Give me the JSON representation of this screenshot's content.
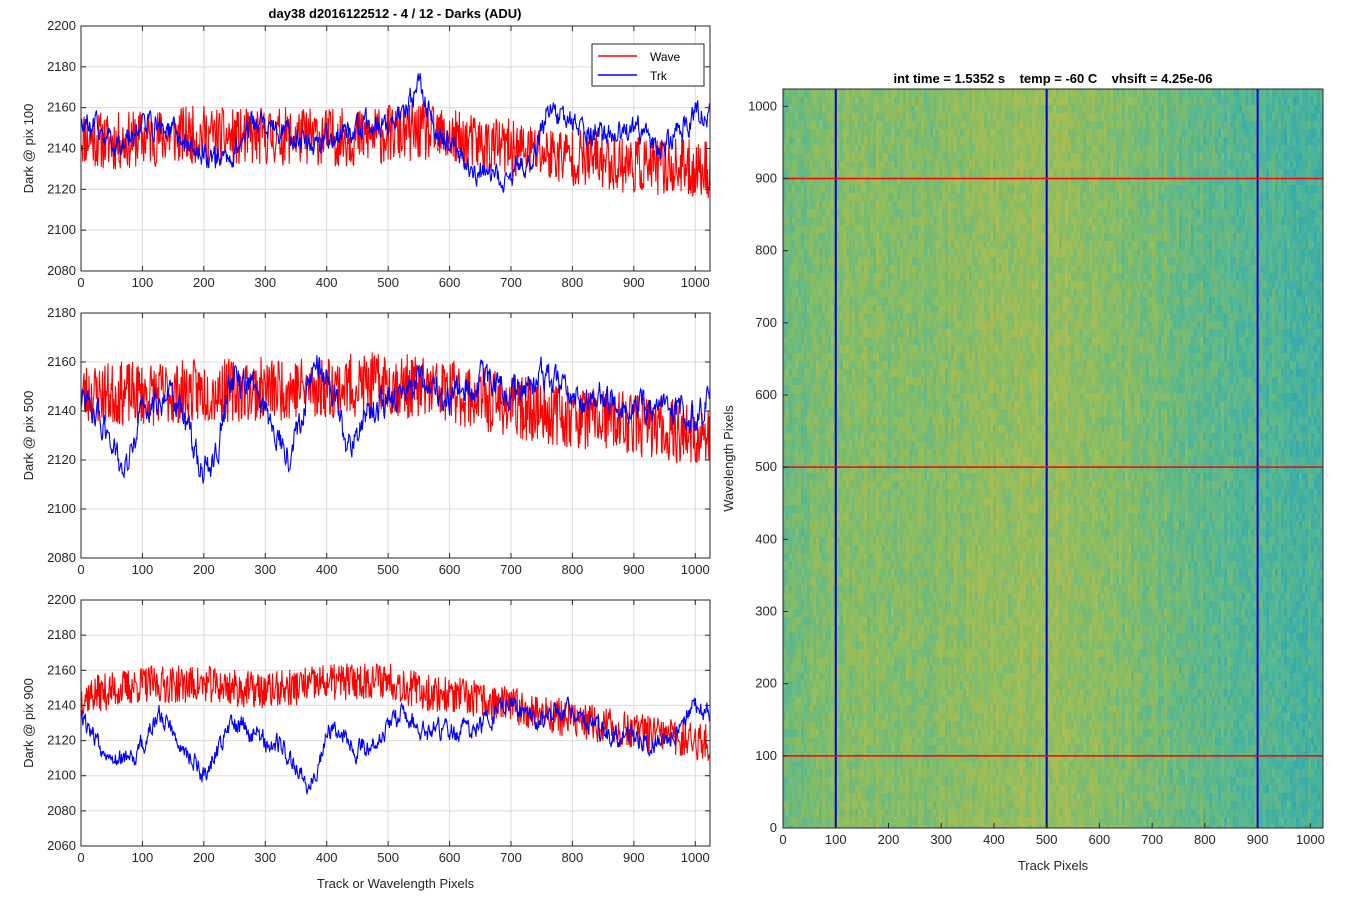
{
  "figure": {
    "suptitle": "day38 d2016122512 - 4 / 12 - Darks (ADU)"
  },
  "chart_data": [
    {
      "type": "line",
      "id": "pix100",
      "title": "day38 d2016122512 - 4 / 12 - Darks (ADU)",
      "xlabel": "",
      "ylabel": "Dark @ pix 100",
      "xlim": [
        0,
        1024
      ],
      "ylim": [
        2080,
        2200
      ],
      "xticks": [
        0,
        100,
        200,
        300,
        400,
        500,
        600,
        700,
        800,
        900,
        1000
      ],
      "yticks": [
        2080,
        2100,
        2120,
        2140,
        2160,
        2180,
        2200
      ],
      "grid": true,
      "legend": {
        "placement": "top-right",
        "entries": [
          "Wave",
          "Trk"
        ]
      },
      "series": [
        {
          "name": "Wave",
          "color": "#ff0000",
          "x": [
            0,
            50,
            100,
            150,
            200,
            250,
            300,
            350,
            400,
            450,
            500,
            550,
            600,
            650,
            700,
            750,
            800,
            850,
            900,
            950,
            1000,
            1024
          ],
          "y": [
            2146,
            2143,
            2145,
            2146,
            2147,
            2145,
            2146,
            2146,
            2146,
            2145,
            2147,
            2148,
            2145,
            2142,
            2140,
            2138,
            2136,
            2134,
            2132,
            2131,
            2130,
            2130
          ],
          "noise": 12
        },
        {
          "name": "Trk",
          "color": "#0000ff",
          "x": [
            0,
            30,
            60,
            100,
            140,
            190,
            240,
            280,
            320,
            380,
            430,
            480,
            520,
            550,
            580,
            620,
            660,
            700,
            740,
            760,
            800,
            850,
            900,
            950,
            1000,
            1024
          ],
          "y": [
            2152,
            2148,
            2143,
            2152,
            2150,
            2138,
            2135,
            2153,
            2148,
            2143,
            2148,
            2151,
            2152,
            2172,
            2148,
            2135,
            2125,
            2125,
            2140,
            2160,
            2152,
            2146,
            2148,
            2140,
            2158,
            2155
          ],
          "noise": 5
        }
      ]
    },
    {
      "type": "line",
      "id": "pix500",
      "title": "",
      "xlabel": "",
      "ylabel": "Dark @ pix 500",
      "xlim": [
        0,
        1024
      ],
      "ylim": [
        2080,
        2180
      ],
      "xticks": [
        0,
        100,
        200,
        300,
        400,
        500,
        600,
        700,
        800,
        900,
        1000
      ],
      "yticks": [
        2080,
        2100,
        2120,
        2140,
        2160,
        2180
      ],
      "grid": true,
      "series": [
        {
          "name": "Wave",
          "color": "#ff0000",
          "x": [
            0,
            100,
            200,
            300,
            400,
            500,
            600,
            700,
            800,
            900,
            1000,
            1024
          ],
          "y": [
            2147,
            2147,
            2148,
            2149,
            2150,
            2151,
            2148,
            2142,
            2138,
            2135,
            2130,
            2128
          ],
          "noise": 11
        },
        {
          "name": "Trk",
          "color": "#0000ff",
          "x": [
            0,
            25,
            50,
            70,
            100,
            150,
            200,
            220,
            240,
            280,
            300,
            340,
            360,
            380,
            410,
            430,
            470,
            520,
            560,
            600,
            650,
            700,
            750,
            800,
            850,
            900,
            950,
            1000,
            1024
          ],
          "y": [
            2145,
            2138,
            2130,
            2112,
            2140,
            2148,
            2115,
            2120,
            2152,
            2150,
            2140,
            2122,
            2140,
            2160,
            2150,
            2125,
            2140,
            2148,
            2150,
            2145,
            2152,
            2148,
            2155,
            2145,
            2146,
            2140,
            2142,
            2138,
            2145
          ],
          "noise": 5
        }
      ]
    },
    {
      "type": "line",
      "id": "pix900",
      "title": "",
      "xlabel": "Track or Wavelength Pixels",
      "ylabel": "Dark @ pix 900",
      "xlim": [
        0,
        1024
      ],
      "ylim": [
        2060,
        2200
      ],
      "xticks": [
        0,
        100,
        200,
        300,
        400,
        500,
        600,
        700,
        800,
        900,
        1000
      ],
      "yticks": [
        2060,
        2080,
        2100,
        2120,
        2140,
        2160,
        2180,
        2200
      ],
      "grid": true,
      "series": [
        {
          "name": "Wave",
          "color": "#ff0000",
          "x": [
            0,
            100,
            200,
            300,
            400,
            500,
            550,
            600,
            700,
            800,
            900,
            1000,
            1024
          ],
          "y": [
            2145,
            2152,
            2152,
            2148,
            2153,
            2155,
            2148,
            2146,
            2140,
            2132,
            2125,
            2120,
            2118
          ],
          "noise": 9
        },
        {
          "name": "Trk",
          "color": "#0000ff",
          "x": [
            0,
            30,
            80,
            130,
            160,
            200,
            250,
            290,
            330,
            370,
            410,
            450,
            480,
            520,
            560,
            600,
            650,
            700,
            750,
            790,
            850,
            900,
            950,
            1000,
            1024
          ],
          "y": [
            2135,
            2118,
            2106,
            2135,
            2120,
            2100,
            2132,
            2122,
            2115,
            2095,
            2130,
            2115,
            2120,
            2135,
            2125,
            2125,
            2128,
            2142,
            2130,
            2138,
            2125,
            2120,
            2120,
            2140,
            2135
          ],
          "noise": 5
        }
      ]
    },
    {
      "type": "heatmap",
      "id": "dark-image",
      "title": "int time = 1.5352 s    temp = -60 C    vhsift = 4.25e-06",
      "xlabel": "Track Pixels",
      "ylabel": "Wavelength Pixels",
      "xlim": [
        0,
        1024
      ],
      "ylim": [
        0,
        1024
      ],
      "xticks": [
        0,
        100,
        200,
        300,
        400,
        500,
        600,
        700,
        800,
        900,
        1000
      ],
      "yticks": [
        0,
        100,
        200,
        300,
        400,
        500,
        600,
        700,
        800,
        900,
        1000
      ],
      "colormap": [
        "#2ba7b6",
        "#58b890",
        "#90be5e",
        "#c4bd4c"
      ],
      "column_profile": {
        "x": [
          0,
          100,
          200,
          300,
          400,
          500,
          600,
          700,
          800,
          900,
          1000,
          1024
        ],
        "level": [
          0.45,
          0.6,
          0.62,
          0.6,
          0.68,
          0.72,
          0.62,
          0.52,
          0.38,
          0.28,
          0.22,
          0.2
        ]
      },
      "marker_columns": {
        "color": "#0000cc",
        "x": [
          100,
          500,
          900
        ]
      },
      "marker_rows": {
        "color": "#ff0000",
        "y": [
          100,
          500,
          900
        ]
      }
    }
  ]
}
